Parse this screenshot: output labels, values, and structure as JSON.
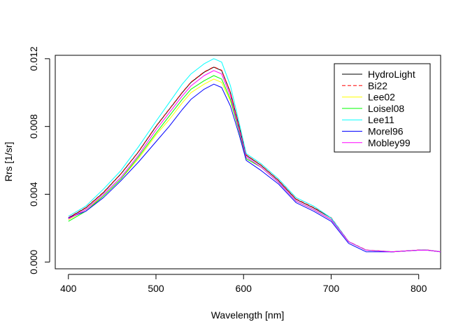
{
  "chart_data": {
    "type": "line",
    "xlabel": "Wavelength [nm]",
    "ylabel": "Rrs [1/sr]",
    "xlim": [
      385,
      825
    ],
    "ylim": [
      -0.0004,
      0.0122
    ],
    "x_ticks": [
      400,
      500,
      600,
      700,
      800
    ],
    "x_tick_labels": [
      "400",
      "500",
      "600",
      "700",
      "800"
    ],
    "y_ticks": [
      0.0,
      0.004,
      0.008,
      0.012
    ],
    "y_tick_labels": [
      "0.000",
      "0.004",
      "0.008",
      "0.012"
    ],
    "grid": false,
    "legend_position": "top-right",
    "x": [
      400,
      420,
      440,
      460,
      480,
      500,
      515,
      530,
      540,
      555,
      566,
      575,
      585,
      595,
      603,
      620,
      640,
      660,
      680,
      700,
      720,
      740,
      770,
      800,
      810,
      825
    ],
    "series": [
      {
        "name": "HydroLight",
        "color": "#000000",
        "dash": "solid",
        "values": [
          0.0026,
          0.0032,
          0.0041,
          0.0052,
          0.0065,
          0.008,
          0.009,
          0.01,
          0.0106,
          0.0112,
          0.0115,
          0.0113,
          0.01,
          0.008,
          0.0063,
          0.0057,
          0.0048,
          0.0037,
          0.0032,
          0.0026,
          0.0012,
          0.0007,
          0.0006,
          0.0007,
          0.0007,
          0.0006
        ]
      },
      {
        "name": "Bi22",
        "color": "#ff0000",
        "dash": "dashed",
        "values": [
          0.00262,
          0.00322,
          0.00412,
          0.00522,
          0.00652,
          0.00802,
          0.00902,
          0.01002,
          0.01062,
          0.01122,
          0.01152,
          0.01132,
          0.01002,
          0.00802,
          0.00632,
          0.00572,
          0.00482,
          0.00372,
          0.00322,
          0.00262,
          0.00121,
          0.00071,
          0.00061,
          0.00071,
          0.00071,
          0.00061
        ]
      },
      {
        "name": "Lee02",
        "color": "#ffff00",
        "dash": "solid",
        "values": [
          0.0025,
          0.0031,
          0.0039,
          0.0049,
          0.0061,
          0.0075,
          0.0084,
          0.0094,
          0.01,
          0.0105,
          0.0108,
          0.0106,
          0.0095,
          0.0077,
          0.0061,
          0.0056,
          0.0047,
          0.0036,
          0.0031,
          0.0025,
          0.0012,
          0.0007,
          0.0006,
          0.0007,
          0.0007,
          0.0006
        ]
      },
      {
        "name": "Loisel08",
        "color": "#00ff00",
        "dash": "solid",
        "values": [
          0.0024,
          0.003,
          0.0039,
          0.0049,
          0.0062,
          0.0076,
          0.0086,
          0.0096,
          0.0102,
          0.0107,
          0.011,
          0.0108,
          0.0096,
          0.0077,
          0.0061,
          0.0056,
          0.0047,
          0.0036,
          0.0031,
          0.0025,
          0.0012,
          0.0007,
          0.0006,
          0.0007,
          0.0007,
          0.0006
        ]
      },
      {
        "name": "Lee11",
        "color": "#00ffff",
        "dash": "solid",
        "values": [
          0.0027,
          0.0033,
          0.0043,
          0.0054,
          0.0068,
          0.0083,
          0.0094,
          0.0105,
          0.0111,
          0.0117,
          0.012,
          0.0118,
          0.0104,
          0.0082,
          0.0064,
          0.0058,
          0.0049,
          0.0038,
          0.0033,
          0.0026,
          0.0012,
          0.0007,
          0.0006,
          0.0007,
          0.0007,
          0.0006
        ]
      },
      {
        "name": "Morel96",
        "color": "#0000ff",
        "dash": "solid",
        "values": [
          0.0026,
          0.003,
          0.0038,
          0.0048,
          0.0059,
          0.0071,
          0.008,
          0.009,
          0.0096,
          0.0102,
          0.0105,
          0.0103,
          0.0092,
          0.0075,
          0.006,
          0.0054,
          0.0046,
          0.0035,
          0.003,
          0.0024,
          0.0011,
          0.0006,
          0.0006,
          0.0007,
          0.0007,
          0.0006
        ]
      },
      {
        "name": "Mobley99",
        "color": "#ff00ff",
        "dash": "solid",
        "values": [
          0.00255,
          0.0031,
          0.004,
          0.005,
          0.0063,
          0.0078,
          0.0088,
          0.0098,
          0.0104,
          0.011,
          0.0113,
          0.0111,
          0.0098,
          0.0078,
          0.0062,
          0.0056,
          0.0047,
          0.0036,
          0.0031,
          0.0025,
          0.0012,
          0.0007,
          0.0006,
          0.0007,
          0.0007,
          0.0006
        ]
      }
    ]
  }
}
